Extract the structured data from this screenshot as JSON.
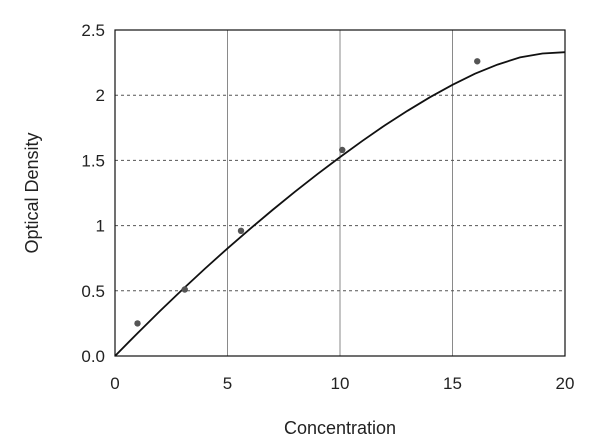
{
  "chart_data": {
    "type": "scatter",
    "xlabel": "Concentration",
    "ylabel": "Optical Density",
    "xlim": [
      0,
      20
    ],
    "ylim": [
      0,
      2.5
    ],
    "x_ticks": [
      0,
      5,
      10,
      15,
      20
    ],
    "x_tick_labels": [
      "0",
      "5",
      "10",
      "15",
      "20"
    ],
    "y_ticks": [
      0,
      0.5,
      1,
      1.5,
      2,
      2.5
    ],
    "y_tick_labels": [
      "0.0",
      "0.5",
      "1",
      "1.5",
      "2",
      "2.5"
    ],
    "grid": true,
    "series": [
      {
        "kind": "points",
        "x": [
          1.0,
          3.1,
          5.6,
          10.1,
          16.1
        ],
        "y": [
          0.25,
          0.51,
          0.96,
          1.58,
          2.26
        ]
      },
      {
        "kind": "fitted-curve",
        "x": [
          0,
          1,
          2,
          3,
          4,
          5,
          6,
          7,
          8,
          9,
          10,
          11,
          12,
          13,
          14,
          15,
          16,
          17,
          18,
          19,
          20
        ],
        "y": [
          0.0,
          0.175,
          0.345,
          0.51,
          0.67,
          0.825,
          0.975,
          1.12,
          1.26,
          1.395,
          1.525,
          1.65,
          1.77,
          1.88,
          1.985,
          2.08,
          2.165,
          2.235,
          2.29,
          2.32,
          2.33
        ]
      }
    ]
  }
}
